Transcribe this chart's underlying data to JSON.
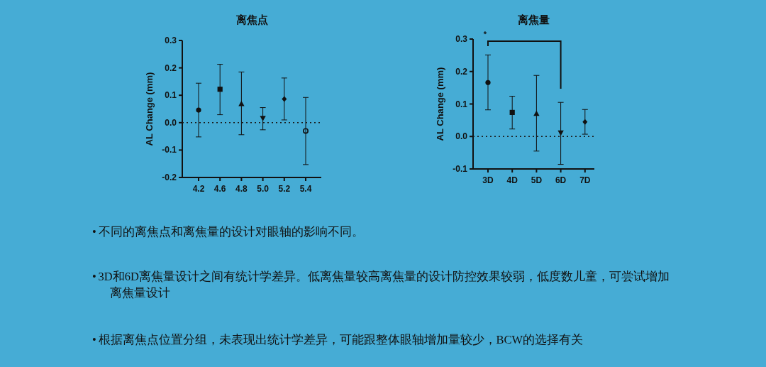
{
  "chart_data": [
    {
      "type": "scatter",
      "title": "离焦点",
      "ylabel": "AL Change (mm)",
      "categories": [
        "4.2",
        "4.6",
        "4.8",
        "5.0",
        "5.2",
        "5.4"
      ],
      "ylim": [
        -0.2,
        0.3
      ],
      "yticks": [
        -0.2,
        -0.1,
        {
          "value": 0,
          "label": "0.0"
        },
        0.1,
        0.2,
        0.3
      ],
      "grid": false,
      "ref_lines": [
        {
          "axis": "y",
          "value": 0,
          "line_style": "dotted",
          "color": "#1a1a1a"
        }
      ],
      "series": [
        {
          "color": "#111111",
          "marker": "circle",
          "values": [
            0.046,
            null,
            null,
            null,
            null,
            null
          ],
          "errors": [
            [
              -0.052,
              0.144
            ],
            null,
            null,
            null,
            null,
            null
          ]
        },
        {
          "color": "#111111",
          "marker": "square",
          "values": [
            null,
            0.122,
            null,
            null,
            null,
            null
          ],
          "errors": [
            null,
            [
              0.029,
              0.213
            ],
            null,
            null,
            null,
            null
          ]
        },
        {
          "color": "#111111",
          "marker": "triangle",
          "values": [
            null,
            null,
            0.068,
            null,
            null,
            null
          ],
          "errors": [
            null,
            null,
            [
              -0.044,
              0.185
            ],
            null,
            null,
            null
          ]
        },
        {
          "color": "#111111",
          "marker": "triangle-down",
          "values": [
            null,
            null,
            null,
            0.017,
            null,
            null
          ],
          "errors": [
            null,
            null,
            null,
            [
              -0.026,
              0.055
            ],
            null,
            null
          ]
        },
        {
          "color": "#111111",
          "marker": "diamond",
          "values": [
            null,
            null,
            null,
            null,
            0.086,
            null
          ],
          "errors": [
            null,
            null,
            null,
            null,
            [
              0.01,
              0.163
            ],
            null
          ]
        },
        {
          "color": "#111111",
          "marker": "open-circle",
          "values": [
            null,
            null,
            null,
            null,
            null,
            -0.03
          ],
          "errors": [
            null,
            null,
            null,
            null,
            null,
            [
              -0.153,
              0.092
            ]
          ]
        }
      ]
    },
    {
      "type": "scatter",
      "title": "离焦量",
      "ylabel": "AL Change (mm)",
      "categories": [
        "3D",
        "4D",
        "5D",
        "6D",
        "7D"
      ],
      "ylim": [
        -0.1,
        0.3
      ],
      "yticks": [
        -0.1,
        {
          "value": 0,
          "label": "0.0"
        },
        0.1,
        0.2,
        0.3
      ],
      "grid": false,
      "ref_lines": [
        {
          "axis": "y",
          "value": 0,
          "line_style": "dotted",
          "color": "#1a1a1a"
        }
      ],
      "series": [
        {
          "color": "#111111",
          "marker": "circle",
          "values": [
            0.166,
            null,
            null,
            null,
            null
          ],
          "errors": [
            [
              0.082,
              0.251
            ],
            null,
            null,
            null,
            null
          ]
        },
        {
          "color": "#111111",
          "marker": "square",
          "values": [
            null,
            0.074,
            null,
            null,
            null
          ],
          "errors": [
            null,
            [
              0.023,
              0.124
            ],
            null,
            null,
            null
          ]
        },
        {
          "color": "#111111",
          "marker": "triangle",
          "values": [
            null,
            null,
            0.07,
            null,
            null
          ],
          "errors": [
            null,
            null,
            [
              -0.045,
              0.188
            ],
            null,
            null
          ]
        },
        {
          "color": "#111111",
          "marker": "triangle-down",
          "values": [
            null,
            null,
            null,
            0.012,
            null
          ],
          "errors": [
            null,
            null,
            null,
            [
              -0.086,
              0.105
            ],
            null
          ]
        },
        {
          "color": "#111111",
          "marker": "diamond",
          "values": [
            null,
            null,
            null,
            null,
            0.045
          ],
          "errors": [
            null,
            null,
            null,
            null,
            [
              0.007,
              0.083
            ]
          ]
        }
      ],
      "annotations": [
        "*",
        "•\t不同的离焦点和离焦量的设计对眼轴的影响不同。",
        "•\t3D和6D离焦量设计之间有统计学差异。低离焦量较高离焦量的设计防控效果较弱，低度数儿童，可尝试增加离焦量设计",
        "•\t根据离焦点位置分组，未表现出统计学差异，可能跟整体眼轴增加量较少，BCW的选择有关"
      ]
    }
  ]
}
